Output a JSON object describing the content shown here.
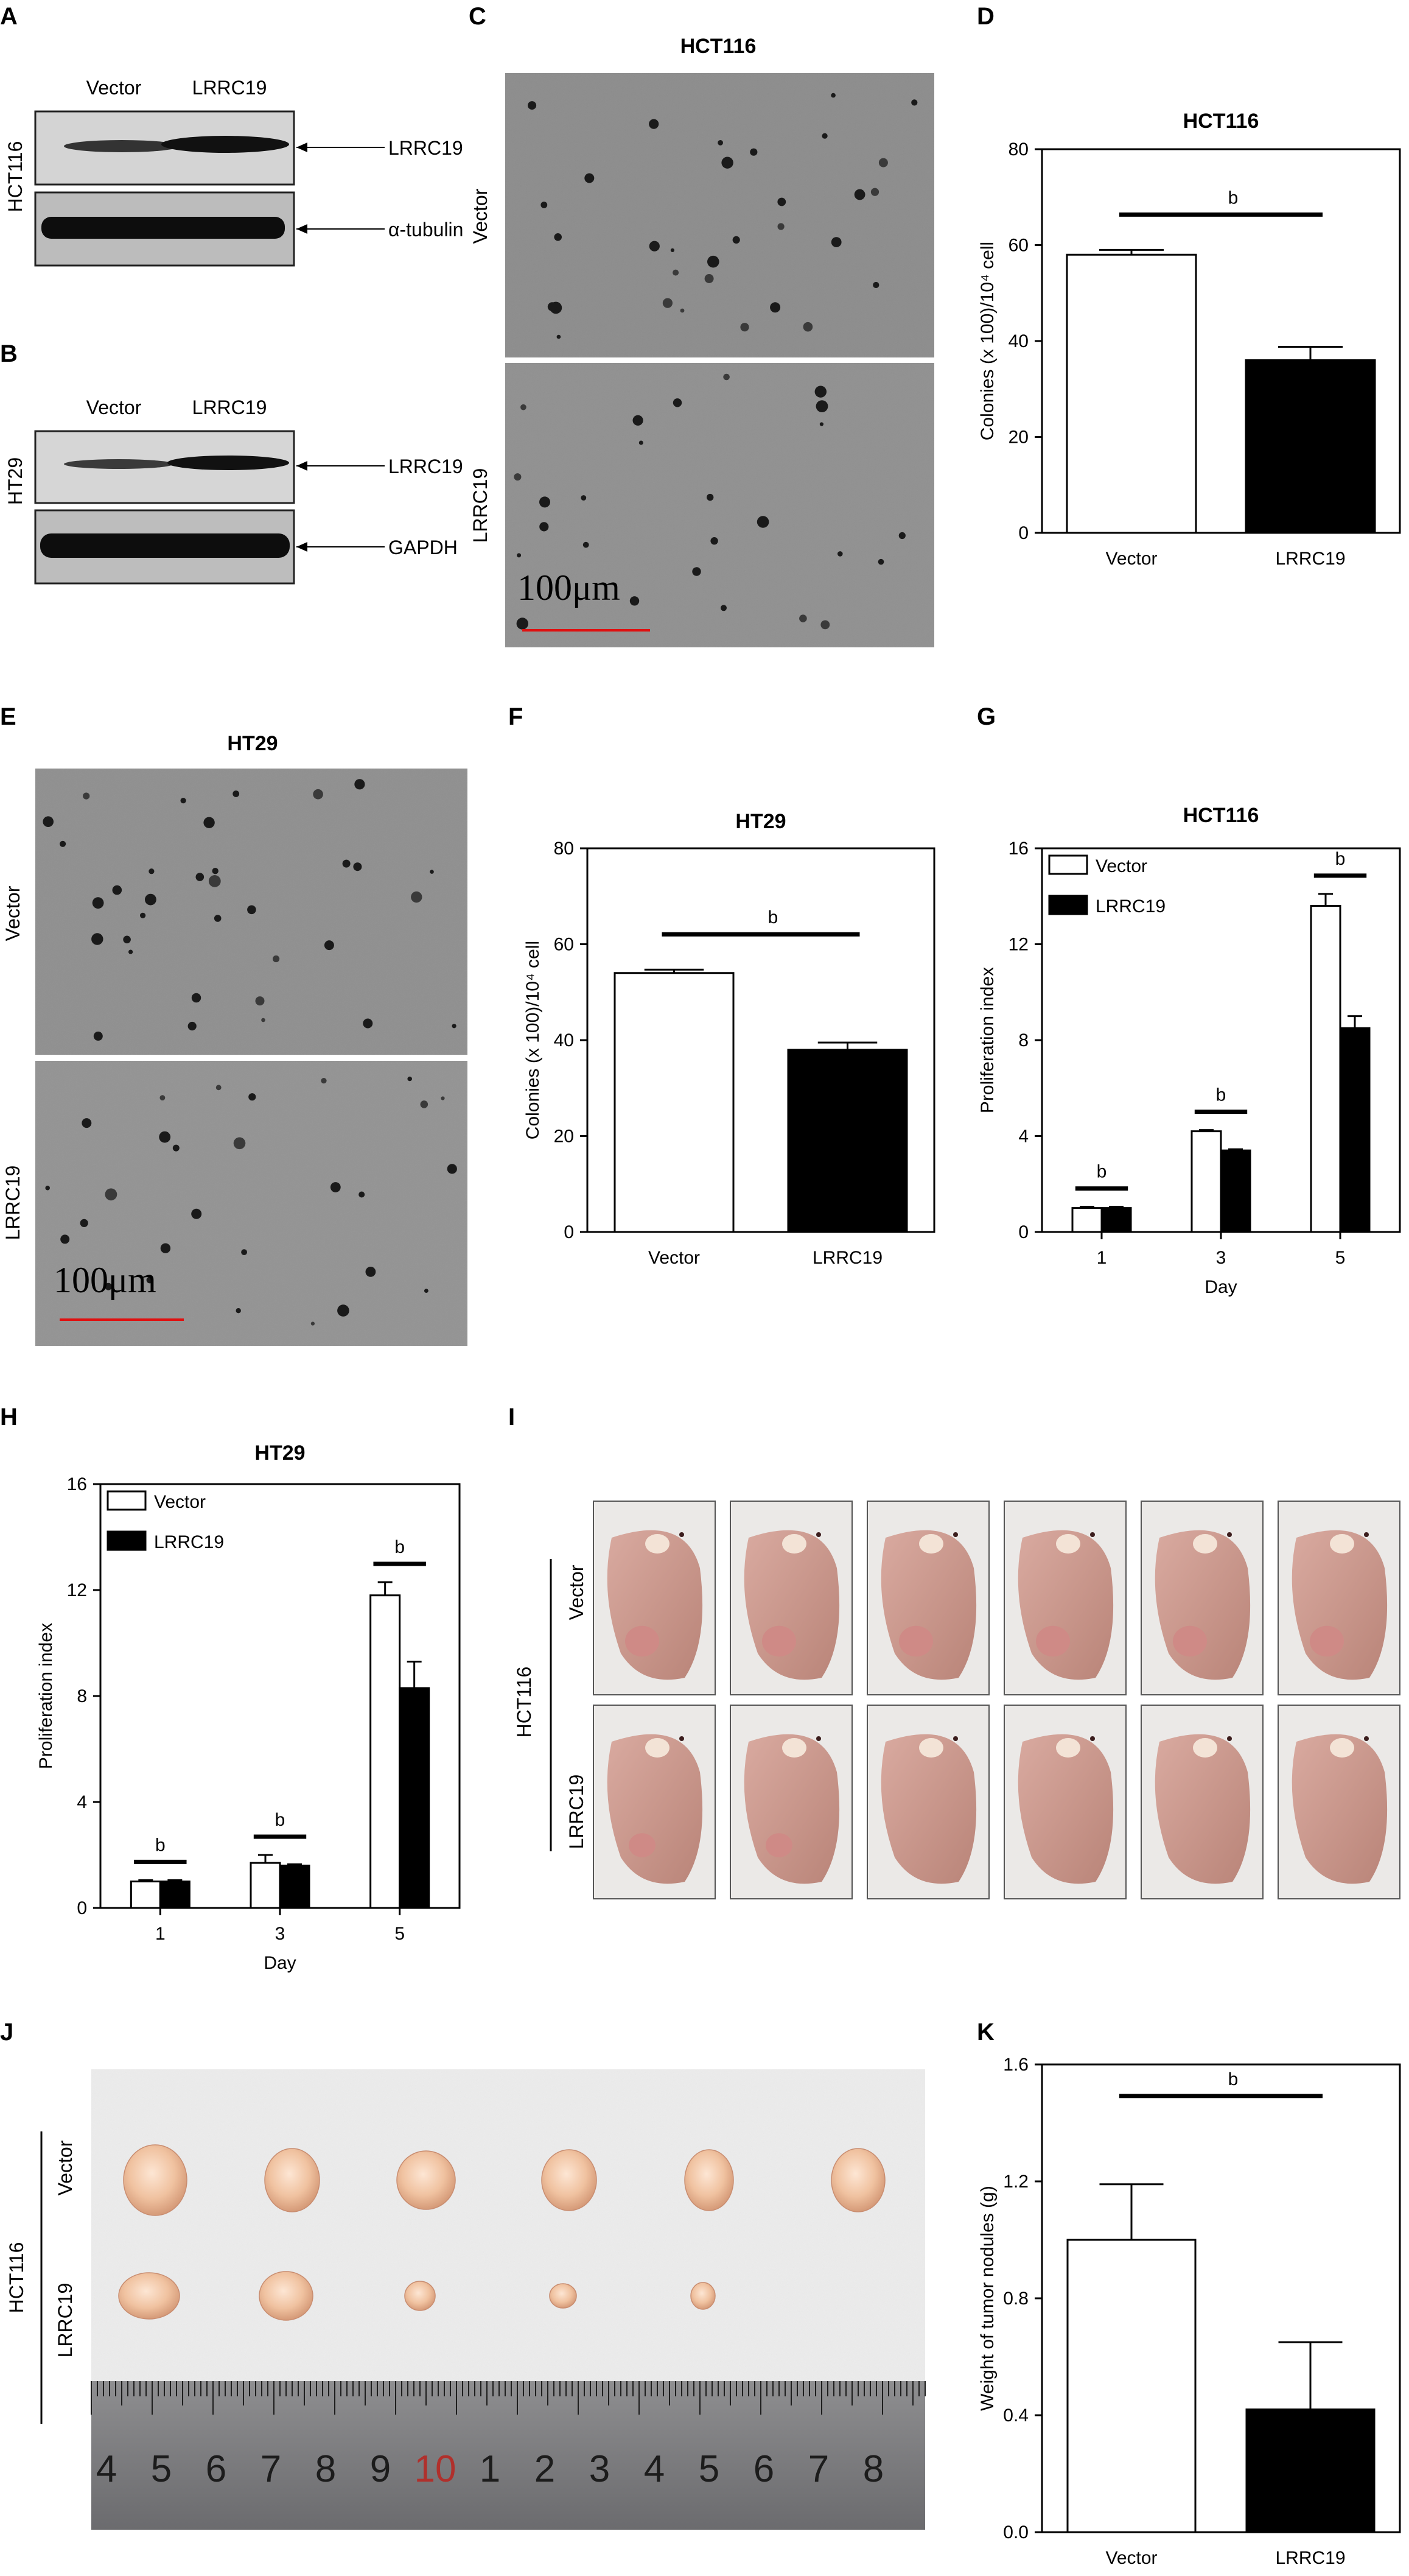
{
  "panels": {
    "A": "A",
    "B": "B",
    "C": "C",
    "D": "D",
    "E": "E",
    "F": "F",
    "G": "G",
    "H": "H",
    "I": "I",
    "J": "J",
    "K": "K"
  },
  "western_blots": [
    {
      "panel": "A",
      "cell_line": "HCT116",
      "lanes": [
        "Vector",
        "LRRC19"
      ],
      "target": "LRRC19",
      "loading_control": "α-tubulin"
    },
    {
      "panel": "B",
      "cell_line": "HT29",
      "lanes": [
        "Vector",
        "LRRC19"
      ],
      "target": "LRRC19",
      "loading_control": "GAPDH"
    }
  ],
  "colony_images": [
    {
      "panel": "C",
      "title": "HCT116",
      "rows": [
        "Vector",
        "LRRC19"
      ],
      "scale_bar": "100μm"
    },
    {
      "panel": "E",
      "title": "HT29",
      "rows": [
        "Vector",
        "LRRC19"
      ],
      "scale_bar": "100μm"
    }
  ],
  "mice_panel": {
    "panel": "I",
    "cell_line": "HCT116",
    "rows": [
      "Vector",
      "LRRC19"
    ]
  },
  "tumor_panel": {
    "panel": "J",
    "cell_line": "HCT116",
    "rows": [
      "Vector",
      "LRRC19"
    ],
    "ruler_numbers": [
      "4",
      "5",
      "6",
      "7",
      "8",
      "9",
      "10",
      "1",
      "2",
      "3",
      "4",
      "5",
      "6",
      "7",
      "8"
    ]
  },
  "chart_data": [
    {
      "panel": "D",
      "type": "bar",
      "title": "HCT116",
      "categories": [
        "Vector",
        "LRRC19"
      ],
      "values": [
        58,
        36
      ],
      "errors": [
        1,
        2.8
      ],
      "ylabel": "Colonies (x 100)/10⁴ cell",
      "ylim": [
        0,
        80
      ],
      "yticks": [
        "0",
        "20",
        "40",
        "60",
        "80"
      ],
      "significance": "b",
      "colors": [
        "#ffffff",
        "#000000"
      ]
    },
    {
      "panel": "F",
      "type": "bar",
      "title": "HT29",
      "categories": [
        "Vector",
        "LRRC19"
      ],
      "values": [
        54,
        38
      ],
      "errors": [
        0.7,
        1.5
      ],
      "ylabel": "Colonies (x 100)/10⁴ cell",
      "ylim": [
        0,
        80
      ],
      "yticks": [
        "0",
        "20",
        "40",
        "60",
        "80"
      ],
      "significance": "b",
      "colors": [
        "#ffffff",
        "#000000"
      ]
    },
    {
      "panel": "G",
      "type": "bar",
      "title": "HCT116",
      "categories": [
        "1",
        "3",
        "5"
      ],
      "series": [
        {
          "name": "Vector",
          "values": [
            1.0,
            4.2,
            13.6
          ],
          "errors": [
            0.05,
            0.05,
            0.5
          ]
        },
        {
          "name": "LRRC19",
          "values": [
            1.0,
            3.4,
            8.5
          ],
          "errors": [
            0.05,
            0.05,
            0.5
          ]
        }
      ],
      "xlabel": "Day",
      "ylabel": "Proliferation index",
      "ylim": [
        0,
        16
      ],
      "yticks": [
        "0",
        "4",
        "8",
        "12",
        "16"
      ],
      "significance": "b",
      "legend": "top-left",
      "colors": [
        "#ffffff",
        "#000000"
      ]
    },
    {
      "panel": "H",
      "type": "bar",
      "title": "HT29",
      "categories": [
        "1",
        "3",
        "5"
      ],
      "series": [
        {
          "name": "Vector",
          "values": [
            1.0,
            1.7,
            11.8
          ],
          "errors": [
            0.05,
            0.3,
            0.5
          ]
        },
        {
          "name": "LRRC19",
          "values": [
            1.0,
            1.6,
            8.3
          ],
          "errors": [
            0.05,
            0.05,
            1.0
          ]
        }
      ],
      "xlabel": "Day",
      "ylabel": "Proliferation index",
      "ylim": [
        0,
        16
      ],
      "yticks": [
        "0",
        "4",
        "8",
        "12",
        "16"
      ],
      "significance": "b",
      "legend": "top-left",
      "colors": [
        "#ffffff",
        "#000000"
      ]
    },
    {
      "panel": "K",
      "type": "bar",
      "title": "",
      "categories": [
        "Vector",
        "LRRC19"
      ],
      "values": [
        1.0,
        0.42
      ],
      "errors": [
        0.19,
        0.23
      ],
      "ylabel": "Weight of tumor nodules (g)",
      "ylim": [
        0,
        1.6
      ],
      "yticks": [
        "0.0",
        "0.4",
        "0.8",
        "1.2",
        "1.6"
      ],
      "significance": "b",
      "colors": [
        "#ffffff",
        "#000000"
      ]
    }
  ]
}
